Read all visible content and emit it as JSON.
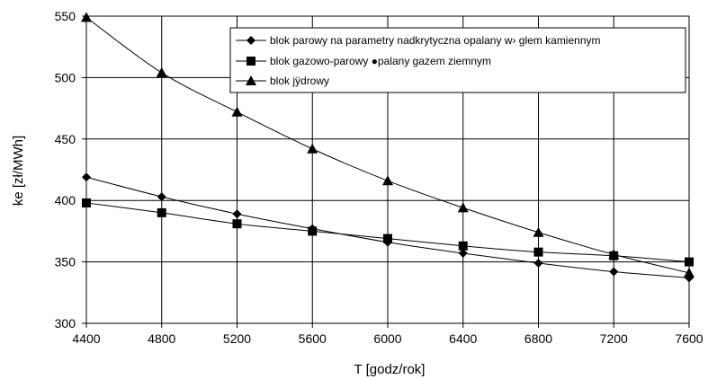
{
  "chart_data": {
    "type": "line",
    "xlabel": "T [godz/rok]",
    "ylabel": "ke [zł/MWh]",
    "xlim": [
      4400,
      7600
    ],
    "ylim": [
      300,
      550
    ],
    "xticks": [
      "4400",
      "4800",
      "5200",
      "5600",
      "6000",
      "6400",
      "6800",
      "7200",
      "7600"
    ],
    "yticks": [
      "300",
      "350",
      "400",
      "450",
      "500",
      "550"
    ],
    "grid": true,
    "legend_position": "top-right",
    "x": [
      4400,
      4800,
      5200,
      5600,
      6000,
      6400,
      6800,
      7200,
      7600
    ],
    "series": [
      {
        "name": "blok parowy na parametry nadkrytyczna opalany w› glem kamiennym",
        "marker": "diamond",
        "values": [
          419,
          403,
          389,
          377,
          366,
          357,
          349,
          342,
          337
        ]
      },
      {
        "name": "blok gazowo-parowy ●palany gazem ziemnym",
        "marker": "square",
        "values": [
          398,
          390,
          381,
          375,
          369,
          363,
          358,
          355,
          350
        ]
      },
      {
        "name": "blok jÿdrowy",
        "marker": "triangle",
        "values": [
          549,
          504,
          472,
          442,
          416,
          394,
          374,
          356,
          341
        ]
      }
    ],
    "colors": {
      "line": "#000000",
      "grid": "#000000",
      "background": "#ffffff"
    }
  }
}
